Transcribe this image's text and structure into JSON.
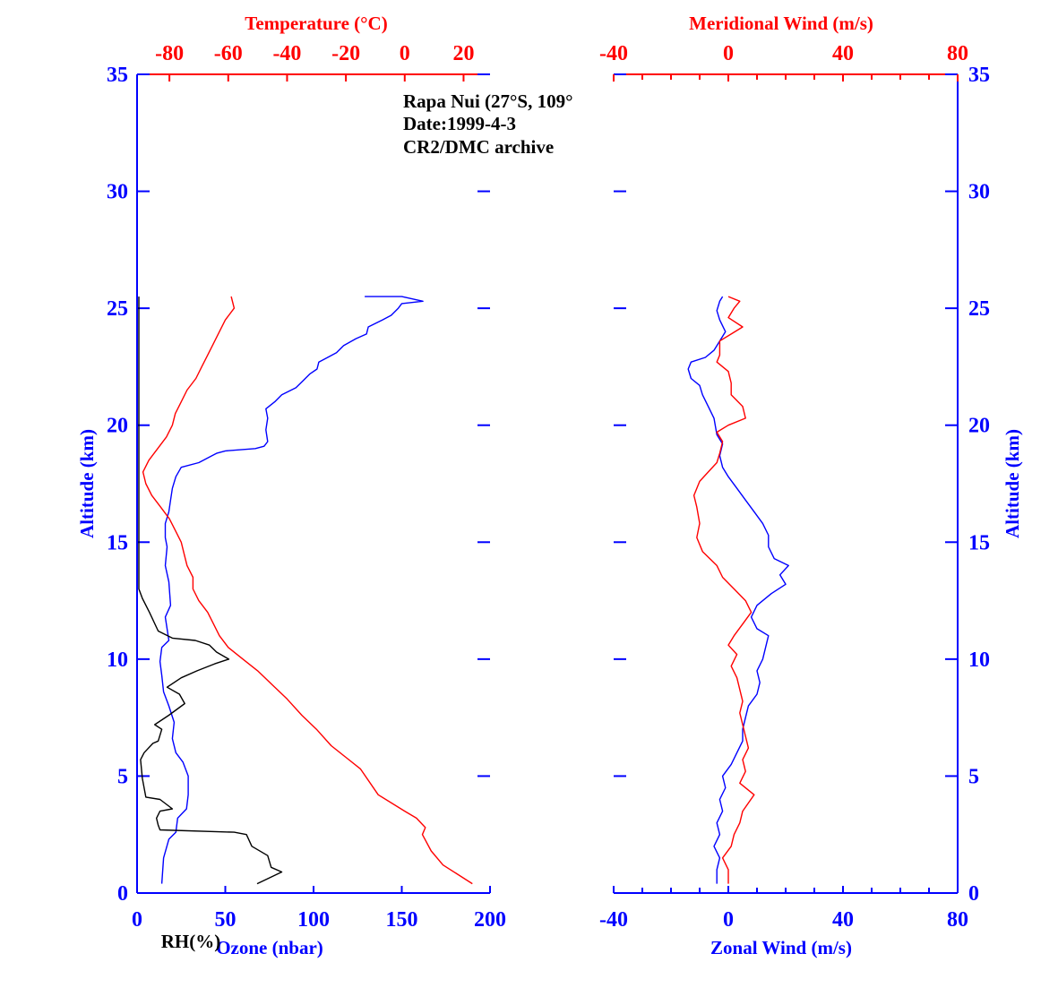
{
  "annotation": [
    "Rapa Nui (27°S, 109°",
    "Date:1999-4-3",
    "CR2/DMC archive"
  ],
  "colors": {
    "blue": "#0000ff",
    "red": "#ff0000",
    "black": "#000000"
  },
  "chart_data": [
    {
      "type": "line",
      "panel": "left",
      "yaxis": {
        "label": "Altitude (km)",
        "ylim": [
          0,
          35
        ],
        "ticks": [
          0,
          5,
          10,
          15,
          20,
          25,
          30,
          35
        ],
        "sides": "both"
      },
      "xaxis_bottom": {
        "label": "Ozone (nbar)",
        "secondary_label": "RH(%)",
        "xlim": [
          0,
          200
        ],
        "ticks": [
          0,
          50,
          100,
          150,
          200
        ]
      },
      "xaxis_top": {
        "label": "Temperature (°C)",
        "xlim": [
          -91,
          29
        ],
        "ticks": [
          -80,
          -60,
          -40,
          -20,
          0,
          20
        ]
      },
      "series": [
        {
          "name": "Ozone (nbar)",
          "axis": "bottom",
          "color": "#0000ff",
          "points": [
            [
              14,
              0.4
            ],
            [
              15,
              1.5
            ],
            [
              18,
              2.3
            ],
            [
              22,
              2.6
            ],
            [
              23,
              3.2
            ],
            [
              28,
              3.6
            ],
            [
              29,
              4.2
            ],
            [
              29,
              5.0
            ],
            [
              26,
              5.6
            ],
            [
              22,
              6.0
            ],
            [
              20,
              6.6
            ],
            [
              21,
              7.3
            ],
            [
              18,
              8.0
            ],
            [
              15,
              8.6
            ],
            [
              14,
              9.3
            ],
            [
              13,
              9.9
            ],
            [
              14,
              10.5
            ],
            [
              18,
              10.8
            ],
            [
              17,
              11.3
            ],
            [
              16,
              11.8
            ],
            [
              19,
              12.3
            ],
            [
              18,
              13.3
            ],
            [
              16,
              14.0
            ],
            [
              17,
              14.8
            ],
            [
              16,
              15.2
            ],
            [
              16,
              15.8
            ],
            [
              18,
              16.3
            ],
            [
              19,
              16.8
            ],
            [
              20,
              17.3
            ],
            [
              22,
              17.8
            ],
            [
              25,
              18.2
            ],
            [
              35,
              18.4
            ],
            [
              45,
              18.8
            ],
            [
              50,
              18.9
            ],
            [
              67,
              19.0
            ],
            [
              72,
              19.1
            ],
            [
              74,
              19.3
            ],
            [
              73,
              19.8
            ],
            [
              74,
              20.3
            ],
            [
              73,
              20.7
            ],
            [
              78,
              21.0
            ],
            [
              82,
              21.3
            ],
            [
              90,
              21.6
            ],
            [
              94,
              21.9
            ],
            [
              98,
              22.2
            ],
            [
              102,
              22.4
            ],
            [
              103,
              22.7
            ],
            [
              108,
              22.9
            ],
            [
              113,
              23.1
            ],
            [
              117,
              23.4
            ],
            [
              124,
              23.7
            ],
            [
              130,
              23.9
            ],
            [
              131,
              24.2
            ],
            [
              139,
              24.5
            ],
            [
              144,
              24.7
            ],
            [
              148,
              25.0
            ],
            [
              150,
              25.2
            ],
            [
              162,
              25.3
            ],
            [
              150,
              25.5
            ],
            [
              129,
              25.5
            ]
          ]
        },
        {
          "name": "RH(%)",
          "axis": "bottom",
          "color": "#000000",
          "points": [
            [
              68,
              0.4
            ],
            [
              82,
              0.9
            ],
            [
              76,
              1.1
            ],
            [
              74,
              1.6
            ],
            [
              65,
              2.0
            ],
            [
              62,
              2.5
            ],
            [
              55,
              2.6
            ],
            [
              13,
              2.7
            ],
            [
              12,
              2.9
            ],
            [
              11,
              3.2
            ],
            [
              13,
              3.5
            ],
            [
              20,
              3.6
            ],
            [
              13,
              4.0
            ],
            [
              5,
              4.1
            ],
            [
              3,
              4.9
            ],
            [
              2,
              5.7
            ],
            [
              4,
              6.0
            ],
            [
              9,
              6.4
            ],
            [
              12,
              6.5
            ],
            [
              14,
              7.0
            ],
            [
              10,
              7.2
            ],
            [
              18,
              7.6
            ],
            [
              27,
              8.1
            ],
            [
              24,
              8.5
            ],
            [
              17,
              8.8
            ],
            [
              25,
              9.2
            ],
            [
              34,
              9.5
            ],
            [
              44,
              9.8
            ],
            [
              52,
              10.0
            ],
            [
              45,
              10.3
            ],
            [
              41,
              10.6
            ],
            [
              33,
              10.8
            ],
            [
              20,
              10.9
            ],
            [
              12,
              11.2
            ],
            [
              7,
              12.0
            ],
            [
              3,
              12.6
            ],
            [
              1,
              13.0
            ],
            [
              1,
              25.5
            ]
          ]
        },
        {
          "name": "Temperature (°C)",
          "axis": "top",
          "color": "#ff0000",
          "points": [
            [
              23,
              0.4
            ],
            [
              18,
              0.8
            ],
            [
              13,
              1.2
            ],
            [
              9,
              1.8
            ],
            [
              6,
              2.5
            ],
            [
              7,
              2.8
            ],
            [
              4,
              3.2
            ],
            [
              0,
              3.5
            ],
            [
              -9,
              4.2
            ],
            [
              -15,
              5.3
            ],
            [
              -20,
              5.8
            ],
            [
              -25,
              6.3
            ],
            [
              -30,
              7.0
            ],
            [
              -35,
              7.6
            ],
            [
              -40,
              8.3
            ],
            [
              -45,
              8.9
            ],
            [
              -50,
              9.5
            ],
            [
              -55,
              10.0
            ],
            [
              -60,
              10.5
            ],
            [
              -63,
              11.0
            ],
            [
              -65,
              11.5
            ],
            [
              -67,
              12.0
            ],
            [
              -70,
              12.5
            ],
            [
              -72,
              13.0
            ],
            [
              -72,
              13.5
            ],
            [
              -74,
              14.0
            ],
            [
              -75,
              14.5
            ],
            [
              -76,
              15.0
            ],
            [
              -78,
              15.5
            ],
            [
              -80,
              16.0
            ],
            [
              -83,
              16.5
            ],
            [
              -86,
              17.0
            ],
            [
              -88,
              17.5
            ],
            [
              -89,
              18.0
            ],
            [
              -87,
              18.5
            ],
            [
              -84,
              19.0
            ],
            [
              -81,
              19.5
            ],
            [
              -79,
              20.0
            ],
            [
              -78,
              20.5
            ],
            [
              -76,
              21.0
            ],
            [
              -74,
              21.5
            ],
            [
              -71,
              22.0
            ],
            [
              -69,
              22.5
            ],
            [
              -67,
              23.0
            ],
            [
              -65,
              23.5
            ],
            [
              -63,
              24.0
            ],
            [
              -61,
              24.5
            ],
            [
              -58,
              25.0
            ],
            [
              -59,
              25.5
            ]
          ]
        }
      ]
    },
    {
      "type": "line",
      "panel": "right",
      "yaxis": {
        "label": "Altitude (km)",
        "ylim": [
          0,
          35
        ],
        "ticks": [
          0,
          5,
          10,
          15,
          20,
          25,
          30,
          35
        ],
        "sides": "both"
      },
      "xaxis_bottom": {
        "label": "Zonal Wind (m/s)",
        "xlim": [
          -40,
          80
        ],
        "ticks": [
          -40,
          0,
          40,
          80
        ]
      },
      "xaxis_top": {
        "label": "Meridional Wind (m/s)",
        "xlim": [
          -40,
          80
        ],
        "ticks": [
          -40,
          0,
          40,
          80
        ]
      },
      "series": [
        {
          "name": "Zonal Wind (m/s)",
          "axis": "bottom",
          "color": "#0000ff",
          "points": [
            [
              -4,
              0.4
            ],
            [
              -4,
              1.0
            ],
            [
              -3,
              1.5
            ],
            [
              -5,
              2.0
            ],
            [
              -3,
              2.5
            ],
            [
              -4,
              3.0
            ],
            [
              -2,
              3.5
            ],
            [
              -3,
              4.0
            ],
            [
              -1,
              4.5
            ],
            [
              -2,
              5.0
            ],
            [
              1,
              5.5
            ],
            [
              3,
              6.0
            ],
            [
              5,
              6.5
            ],
            [
              5,
              7.0
            ],
            [
              6,
              7.5
            ],
            [
              7,
              8.0
            ],
            [
              10,
              8.5
            ],
            [
              11,
              9.0
            ],
            [
              10,
              9.5
            ],
            [
              12,
              10.0
            ],
            [
              13,
              10.5
            ],
            [
              14,
              11.0
            ],
            [
              10,
              11.3
            ],
            [
              8,
              11.8
            ],
            [
              10,
              12.3
            ],
            [
              15,
              12.8
            ],
            [
              20,
              13.2
            ],
            [
              18,
              13.6
            ],
            [
              21,
              14.0
            ],
            [
              16,
              14.3
            ],
            [
              14,
              14.8
            ],
            [
              14,
              15.3
            ],
            [
              12,
              15.8
            ],
            [
              9,
              16.3
            ],
            [
              6,
              16.8
            ],
            [
              3,
              17.3
            ],
            [
              0,
              17.8
            ],
            [
              -2,
              18.2
            ],
            [
              -3,
              18.7
            ],
            [
              -2,
              19.2
            ],
            [
              -4,
              19.6
            ],
            [
              -5,
              20.3
            ],
            [
              -7,
              20.8
            ],
            [
              -9,
              21.3
            ],
            [
              -10,
              21.7
            ],
            [
              -13,
              22.0
            ],
            [
              -14,
              22.4
            ],
            [
              -13,
              22.7
            ],
            [
              -8,
              22.9
            ],
            [
              -5,
              23.2
            ],
            [
              -3,
              23.6
            ],
            [
              -1,
              24.0
            ],
            [
              -3,
              24.5
            ],
            [
              -4,
              24.9
            ],
            [
              -3,
              25.3
            ],
            [
              -2,
              25.5
            ]
          ]
        },
        {
          "name": "Meridional Wind (m/s)",
          "axis": "top",
          "color": "#ff0000",
          "points": [
            [
              0,
              0.4
            ],
            [
              0,
              1.0
            ],
            [
              -2,
              1.5
            ],
            [
              1,
              2.0
            ],
            [
              2,
              2.5
            ],
            [
              4,
              3.0
            ],
            [
              5,
              3.5
            ],
            [
              9,
              4.2
            ],
            [
              4,
              4.7
            ],
            [
              6,
              5.2
            ],
            [
              5,
              5.7
            ],
            [
              7,
              6.2
            ],
            [
              6,
              6.7
            ],
            [
              5,
              7.2
            ],
            [
              4,
              7.7
            ],
            [
              5,
              8.2
            ],
            [
              4,
              8.7
            ],
            [
              3,
              9.2
            ],
            [
              1,
              9.7
            ],
            [
              3,
              10.2
            ],
            [
              0,
              10.6
            ],
            [
              2,
              11.0
            ],
            [
              5,
              11.5
            ],
            [
              8,
              12.0
            ],
            [
              6,
              12.5
            ],
            [
              2,
              13.0
            ],
            [
              -2,
              13.5
            ],
            [
              -4,
              14.0
            ],
            [
              -9,
              14.6
            ],
            [
              -11,
              15.2
            ],
            [
              -10,
              15.8
            ],
            [
              -11,
              16.5
            ],
            [
              -12,
              17.0
            ],
            [
              -10,
              17.6
            ],
            [
              -7,
              18.0
            ],
            [
              -4,
              18.4
            ],
            [
              -3,
              18.8
            ],
            [
              -2,
              19.3
            ],
            [
              -4,
              19.7
            ],
            [
              0,
              20.0
            ],
            [
              6,
              20.3
            ],
            [
              5,
              20.8
            ],
            [
              1,
              21.3
            ],
            [
              1,
              21.8
            ],
            [
              0,
              22.3
            ],
            [
              -4,
              22.7
            ],
            [
              -3,
              23.0
            ],
            [
              -3,
              23.6
            ],
            [
              1,
              23.9
            ],
            [
              5,
              24.2
            ],
            [
              0,
              24.6
            ],
            [
              2,
              25.0
            ],
            [
              4,
              25.3
            ],
            [
              0,
              25.5
            ]
          ]
        }
      ]
    }
  ]
}
